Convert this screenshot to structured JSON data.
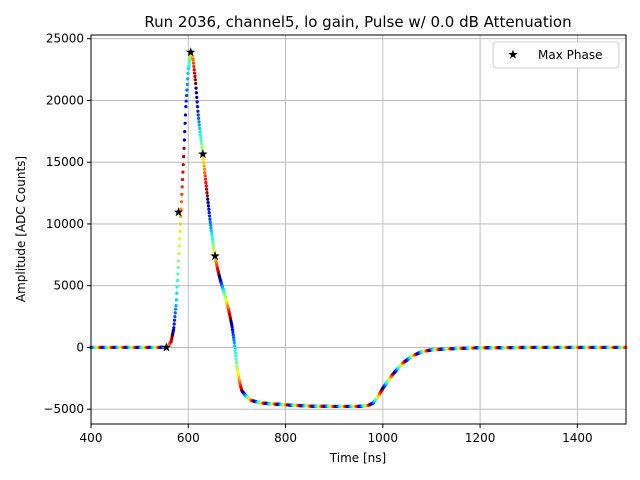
{
  "chart_data": {
    "type": "scatter",
    "title": "Run 2036, channel5, lo gain, Pulse w/ 0.0 dB Attenuation",
    "xlabel": "Time [ns]",
    "ylabel": "Amplitude [ADC Counts]",
    "xlim": [
      400,
      1500
    ],
    "ylim": [
      -6200,
      25300
    ],
    "x_ticks": [
      400,
      600,
      800,
      1000,
      1200,
      1400
    ],
    "x_tick_labels": [
      "400",
      "600",
      "800",
      "1000",
      "1200",
      "1400"
    ],
    "y_ticks": [
      -5000,
      0,
      5000,
      10000,
      15000,
      20000,
      25000
    ],
    "y_tick_labels": [
      "−5000",
      "0",
      "5000",
      "10000",
      "15000",
      "20000",
      "25000"
    ],
    "grid": true,
    "legend_position": "top-right",
    "series": [
      {
        "name": "",
        "kind": "waveform",
        "marker": "dot",
        "colormap": "jet",
        "points": [
          [
            400,
            0
          ],
          [
            500,
            0
          ],
          [
            540,
            0
          ],
          [
            555,
            20
          ],
          [
            560,
            150
          ],
          [
            565,
            500
          ],
          [
            570,
            1500
          ],
          [
            575,
            3500
          ],
          [
            580,
            7000
          ],
          [
            585,
            11000
          ],
          [
            590,
            15000
          ],
          [
            595,
            19500
          ],
          [
            600,
            22500
          ],
          [
            605,
            23800
          ],
          [
            610,
            23300
          ],
          [
            615,
            21500
          ],
          [
            620,
            19000
          ],
          [
            625,
            17200
          ],
          [
            630,
            15600
          ],
          [
            635,
            13800
          ],
          [
            640,
            12000
          ],
          [
            645,
            10200
          ],
          [
            650,
            8700
          ],
          [
            655,
            7400
          ],
          [
            660,
            6400
          ],
          [
            665,
            5600
          ],
          [
            670,
            4900
          ],
          [
            675,
            4300
          ],
          [
            680,
            3500
          ],
          [
            685,
            2700
          ],
          [
            690,
            1700
          ],
          [
            695,
            300
          ],
          [
            700,
            -1500
          ],
          [
            705,
            -2700
          ],
          [
            710,
            -3500
          ],
          [
            720,
            -4000
          ],
          [
            730,
            -4300
          ],
          [
            750,
            -4500
          ],
          [
            800,
            -4650
          ],
          [
            850,
            -4750
          ],
          [
            900,
            -4780
          ],
          [
            950,
            -4780
          ],
          [
            970,
            -4700
          ],
          [
            980,
            -4500
          ],
          [
            990,
            -4000
          ],
          [
            1000,
            -3300
          ],
          [
            1020,
            -2200
          ],
          [
            1040,
            -1300
          ],
          [
            1060,
            -700
          ],
          [
            1080,
            -350
          ],
          [
            1100,
            -200
          ],
          [
            1150,
            -80
          ],
          [
            1200,
            -30
          ],
          [
            1300,
            0
          ],
          [
            1500,
            0
          ]
        ]
      },
      {
        "name": "Max Phase",
        "kind": "markers",
        "marker": "star",
        "color": "#000000",
        "points": [
          [
            555,
            0
          ],
          [
            580,
            10950
          ],
          [
            605,
            23900
          ],
          [
            630,
            15650
          ],
          [
            655,
            7400
          ]
        ]
      }
    ]
  }
}
